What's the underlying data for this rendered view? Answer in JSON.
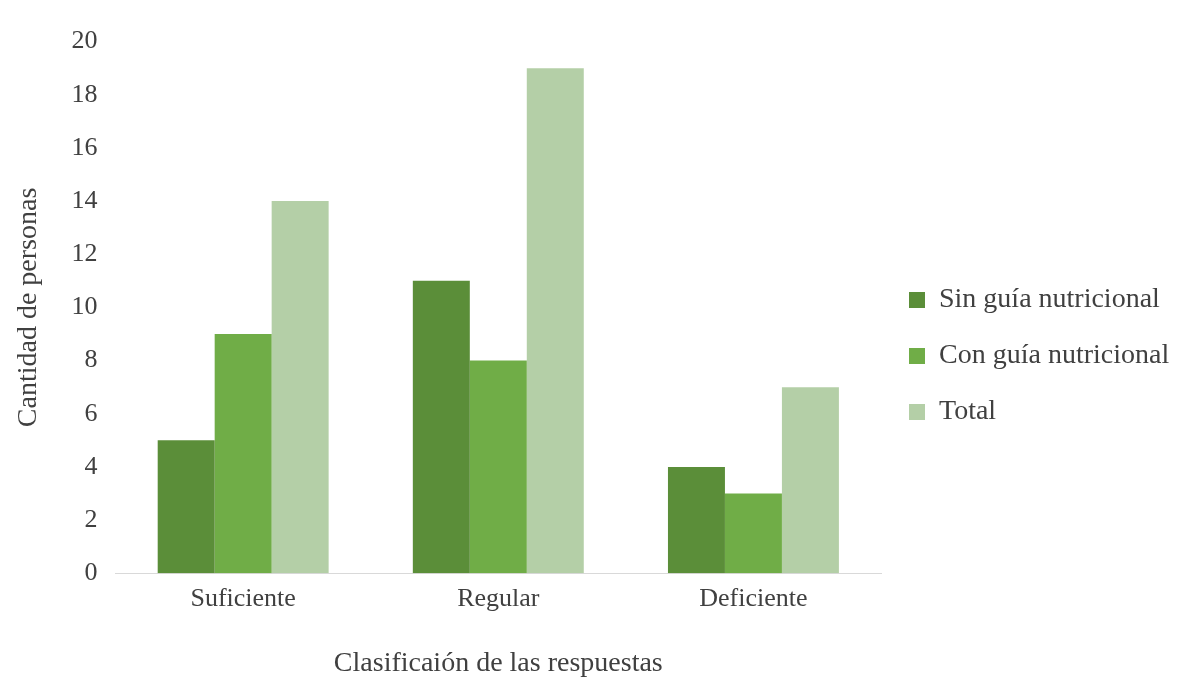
{
  "chart_data": {
    "type": "bar",
    "xlabel": "Clasificaión de las respuestas",
    "ylabel": "Cantidad de personas",
    "categories": [
      "Suficiente",
      "Regular",
      "Deficiente"
    ],
    "series": [
      {
        "name": "Sin guía nutricional",
        "color": "#5b8e39",
        "values": [
          5,
          11,
          4
        ]
      },
      {
        "name": "Con guía nutricional",
        "color": "#70ad47",
        "values": [
          9,
          8,
          3
        ]
      },
      {
        "name": "Total",
        "color": "#b4cfa7",
        "values": [
          14,
          19,
          7
        ]
      }
    ],
    "ylim": [
      0,
      20
    ],
    "yticks": [
      0,
      2,
      4,
      6,
      8,
      10,
      12,
      14,
      16,
      18,
      20
    ],
    "grid": false,
    "legend": "right"
  }
}
